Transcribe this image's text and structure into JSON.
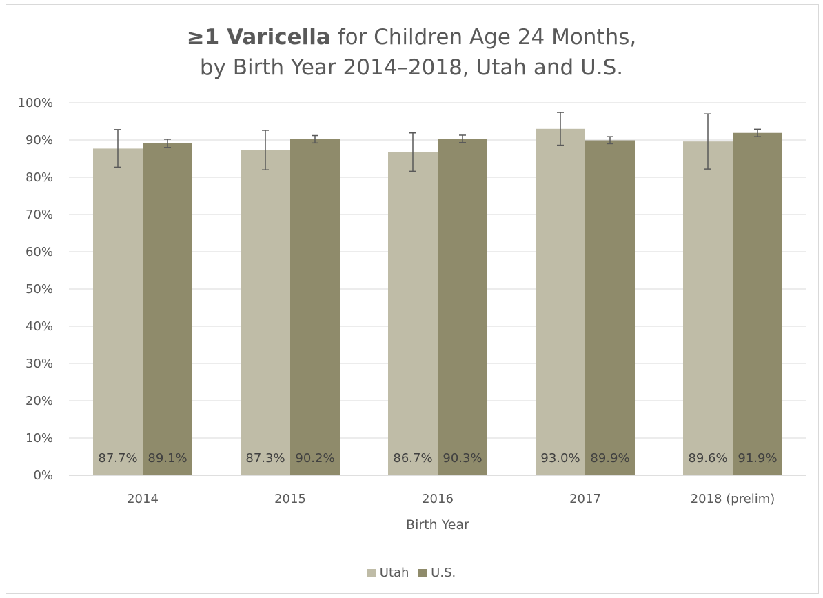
{
  "title": {
    "bold": "≥1 Varicella",
    "rest_line1": " for Children Age 24 Months,",
    "line2": "by Birth Year 2014–2018, Utah and U.S."
  },
  "colors": {
    "utah": "#bfbca7",
    "us": "#8f8b6b",
    "grid": "#d9d9d9",
    "error": "#595959"
  },
  "chart_data": {
    "type": "bar",
    "categories": [
      "2014",
      "2015",
      "2016",
      "2017",
      "2018 (prelim)"
    ],
    "series": [
      {
        "name": "Utah",
        "values": [
          87.7,
          87.3,
          86.7,
          93.0,
          89.6
        ],
        "labels": [
          "87.7%",
          "87.3%",
          "86.7%",
          "93.0%",
          "89.6%"
        ],
        "error_low": [
          82.7,
          82.0,
          81.6,
          88.6,
          82.2
        ],
        "error_high": [
          92.8,
          92.6,
          91.9,
          97.4,
          97.0
        ]
      },
      {
        "name": "U.S.",
        "values": [
          89.1,
          90.2,
          90.3,
          89.9,
          91.9
        ],
        "labels": [
          "89.1%",
          "90.2%",
          "90.3%",
          "89.9%",
          "91.9%"
        ],
        "error_low": [
          88.0,
          89.2,
          89.3,
          89.0,
          90.9
        ],
        "error_high": [
          90.2,
          91.2,
          91.3,
          90.9,
          92.9
        ]
      }
    ],
    "xlabel": "Birth Year",
    "ylim": [
      0,
      100
    ],
    "yticks": [
      "0%",
      "10%",
      "20%",
      "30%",
      "40%",
      "50%",
      "60%",
      "70%",
      "80%",
      "90%",
      "100%"
    ],
    "grid": true,
    "legend": "bottom"
  }
}
